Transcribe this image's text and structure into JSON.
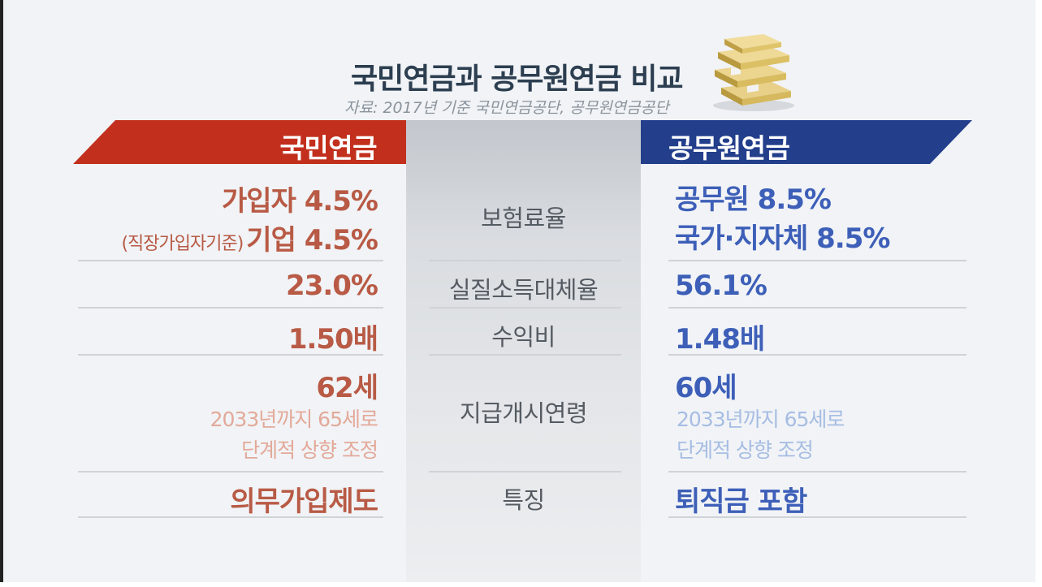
{
  "header": {
    "title": "국민연금과 공무원연금 비교",
    "source": "자료: 2017년 기준 국민연금공단, 공무원연금공단",
    "image_icon": "money-stack-icon"
  },
  "columns": {
    "left": {
      "label": "국민연금",
      "color": "#c2301d"
    },
    "right": {
      "label": "공무원연금",
      "color": "#233f8c"
    }
  },
  "rows": [
    {
      "label": "보험료율",
      "left": {
        "line1": "가입자 4.5%",
        "note": "(직장가입자기준)",
        "line2": "기업 4.5%"
      },
      "right": {
        "line1": "공무원 8.5%",
        "line2": "국가·지자체 8.5%"
      }
    },
    {
      "label": "실질소득대체율",
      "left": {
        "value": "23.0%"
      },
      "right": {
        "value": "56.1%"
      }
    },
    {
      "label": "수익비",
      "left": {
        "value": "1.50배"
      },
      "right": {
        "value": "1.48배"
      }
    },
    {
      "label": "지급개시연령",
      "left": {
        "value": "62세",
        "sub1": "2033년까지 65세로",
        "sub2": "단계적 상향 조정"
      },
      "right": {
        "value": "60세",
        "sub1": "2033년까지 65세로",
        "sub2": "단계적 상향 조정"
      }
    },
    {
      "label": "특징",
      "left": {
        "value": "의무가입제도"
      },
      "right": {
        "value": "퇴직금 포함"
      }
    }
  ]
}
